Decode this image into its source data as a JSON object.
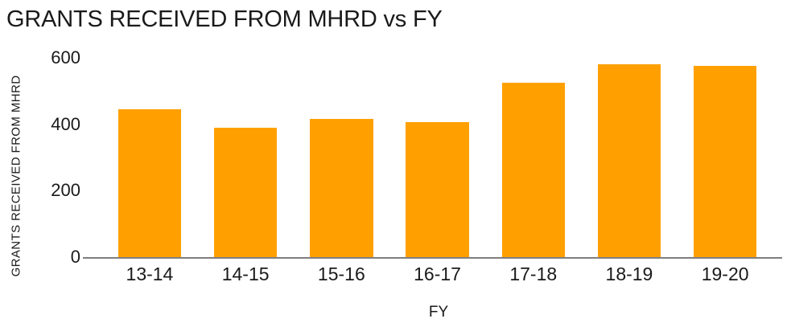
{
  "title": "GRANTS RECEIVED FROM MHRD vs FY",
  "colors": {
    "bar": "#FFA000",
    "axis_line": "#7F7F7F",
    "text": "#1A1A1A"
  },
  "chart_data": {
    "type": "bar",
    "title": "GRANTS RECEIVED FROM MHRD vs FY",
    "xlabel": "FY",
    "ylabel": "GRANTS RECEIVED FROM MHRD",
    "categories": [
      "13-14",
      "14-15",
      "15-16",
      "16-17",
      "17-18",
      "18-19",
      "19-20"
    ],
    "values": [
      444,
      390,
      417,
      407,
      525,
      580,
      575
    ],
    "ylim": [
      0,
      600
    ],
    "yticks": [
      0,
      200,
      400,
      600
    ],
    "grid": false,
    "legend_position": "none",
    "bar_color": "#FFA000"
  }
}
